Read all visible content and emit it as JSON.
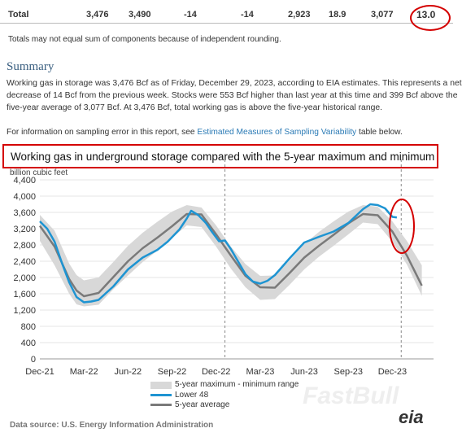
{
  "table": {
    "total_row": {
      "label": "Total",
      "values": [
        "3,476",
        "3,490",
        "-14",
        "-14",
        "2,923",
        "18.9",
        "3,077",
        "13.0"
      ]
    },
    "note": "Totals may not equal sum of components because of independent rounding."
  },
  "summary": {
    "heading": "Summary",
    "lines": [
      "Working gas in storage was 3,476 Bcf as of Friday, December 29, 2023, according to EIA estimates. This represents a net",
      "decrease of 14 Bcf from the previous week. Stocks were 553 Bcf higher than last year at this time and 399 Bcf above the",
      "five-year average of 3,077 Bcf. At 3,476 Bcf, total working gas is above the five-year historical range."
    ],
    "info_prefix": "For information on sampling error in this report, see ",
    "info_link": "Estimated Measures of Sampling Variability",
    "info_suffix": " table below."
  },
  "chart_title": "Working gas in underground  storage compared with the 5-year maximum and minimum",
  "data_source": "Data source:  U.S. Energy Information Administration",
  "logo_text": "eia",
  "watermark_text": "FastBull",
  "colors": {
    "lower48": "#1e94d2",
    "avg": "#7a7a7a",
    "range": "#d8d8d8",
    "highlight": "#d40000"
  },
  "chart_data": {
    "type": "line",
    "ylabel": "billion cubic feet",
    "ylim": [
      0,
      4400
    ],
    "yticks": [
      0,
      400,
      800,
      1200,
      1600,
      2000,
      2400,
      2800,
      3200,
      3600,
      4000,
      4400
    ],
    "ytick_labels": [
      "0",
      "400",
      "800",
      "1,200",
      "1,600",
      "2,000",
      "2,400",
      "2,800",
      "3,200",
      "3,600",
      "4,000",
      "4,400"
    ],
    "xlim": [
      0,
      26.8
    ],
    "xticks": [
      0,
      3,
      6,
      9,
      12,
      15,
      18,
      21,
      24
    ],
    "xtick_labels": [
      "Dec-21",
      "Mar-22",
      "Jun-22",
      "Sep-22",
      "Dec-22",
      "Mar-23",
      "Jun-23",
      "Sep-23",
      "Dec-23"
    ],
    "dashed_x": [
      12.6,
      24.6
    ],
    "legend": [
      "5-year maximum - minimum range",
      "Lower 48",
      "5-year average"
    ],
    "series": [
      {
        "name": "5-year maximum - minimum range",
        "kind": "band",
        "x": [
          0,
          1,
          2,
          2.5,
          3,
          4,
          5,
          6,
          7,
          8,
          9,
          10,
          11,
          12,
          13,
          14,
          15,
          16,
          17,
          18,
          19,
          20,
          21,
          22,
          23,
          24,
          25,
          26
        ],
        "upper": [
          3540,
          3150,
          2340,
          2060,
          1930,
          2000,
          2380,
          2780,
          3100,
          3370,
          3620,
          3780,
          3720,
          3280,
          2760,
          2330,
          2040,
          2050,
          2420,
          2820,
          3120,
          3380,
          3620,
          3780,
          3740,
          3380,
          2890,
          2300
        ],
        "lower": [
          2900,
          2300,
          1600,
          1340,
          1290,
          1330,
          1710,
          2050,
          2380,
          2660,
          2970,
          3280,
          3240,
          2760,
          2220,
          1760,
          1450,
          1470,
          1820,
          2200,
          2510,
          2780,
          3060,
          3350,
          3310,
          2880,
          2310,
          1550
        ]
      },
      {
        "name": "5-year average",
        "kind": "line",
        "x": [
          0,
          1,
          2,
          2.5,
          3,
          4,
          5,
          6,
          7,
          8,
          9,
          10,
          11,
          12,
          13,
          14,
          15,
          16,
          17,
          18,
          19,
          20,
          21,
          22,
          23,
          24,
          25,
          26
        ],
        "values": [
          3270,
          2760,
          1960,
          1680,
          1540,
          1620,
          2010,
          2400,
          2720,
          2980,
          3260,
          3560,
          3550,
          3060,
          2540,
          2040,
          1760,
          1750,
          2110,
          2490,
          2780,
          3050,
          3330,
          3560,
          3530,
          3130,
          2530,
          1800
        ]
      },
      {
        "name": "Lower 48",
        "kind": "line",
        "x": [
          0,
          0.5,
          1,
          1.5,
          2,
          2.5,
          3,
          3.5,
          4,
          5,
          6,
          7,
          8,
          8.7,
          9.5,
          10,
          10.3,
          10.8,
          11.3,
          11.7,
          12.2,
          12.6,
          13,
          13.5,
          14,
          14.5,
          15,
          15.5,
          16,
          17,
          18,
          19,
          20,
          21,
          22,
          22.5,
          23,
          23.5,
          24,
          24.3
        ],
        "values": [
          3380,
          3200,
          2880,
          2360,
          1880,
          1520,
          1390,
          1410,
          1450,
          1780,
          2200,
          2490,
          2680,
          2880,
          3180,
          3450,
          3640,
          3530,
          3340,
          3130,
          2890,
          2910,
          2700,
          2390,
          2080,
          1900,
          1850,
          1920,
          2060,
          2470,
          2860,
          3000,
          3130,
          3340,
          3680,
          3800,
          3780,
          3700,
          3490,
          3476
        ]
      }
    ]
  }
}
